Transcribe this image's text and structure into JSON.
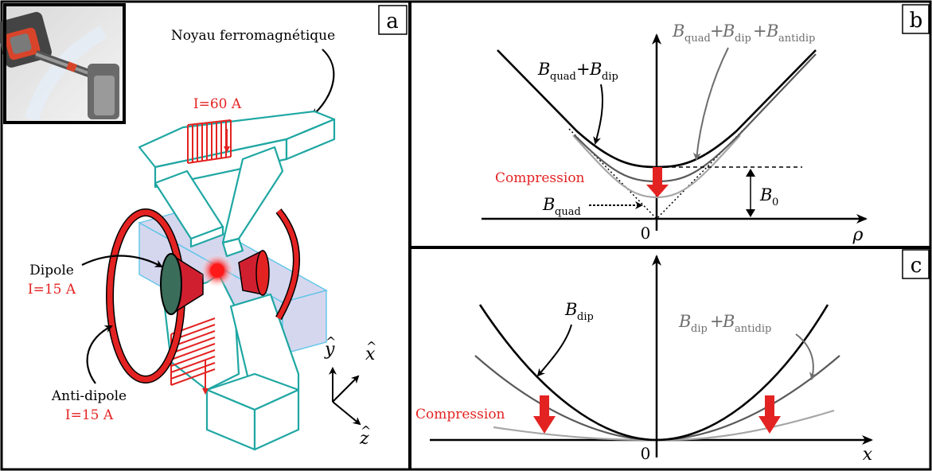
{
  "panel_a": {
    "label": "a",
    "core_label": "Noyau ferromagnétique",
    "quad_current": "I=60 A",
    "dipole_label": "Dipole",
    "dipole_current": "I=15 A",
    "antidipole_label": "Anti-dipole",
    "antidipole_current": "I=15 A",
    "axes": {
      "y_symbol": "y",
      "x_symbol": "x",
      "z_symbol": "z",
      "hat": "^"
    }
  },
  "panel_b": {
    "label": "b",
    "curve_labels": {
      "B": "B",
      "quad": "quad",
      "dip": "dip",
      "antidip": "antidip",
      "plus": "+"
    },
    "compression_label": "Compression",
    "b0_B": "B",
    "b0_sub": "0",
    "origin_label": "0",
    "x_axis_symbol": "ρ"
  },
  "panel_c": {
    "label": "c",
    "curve_labels": {
      "B": "B",
      "dip": "dip",
      "antidip": "antidip",
      "plus": "+"
    },
    "compression_label": "Compression",
    "origin_label": "0",
    "x_axis_symbol": "x"
  },
  "colors": {
    "black": "#000000",
    "dark_gray": "#555555",
    "light_gray": "#9a9a9a",
    "red": "#e32322",
    "teal": "#1fa7a3",
    "beam_blue": "#c7c9ea"
  }
}
